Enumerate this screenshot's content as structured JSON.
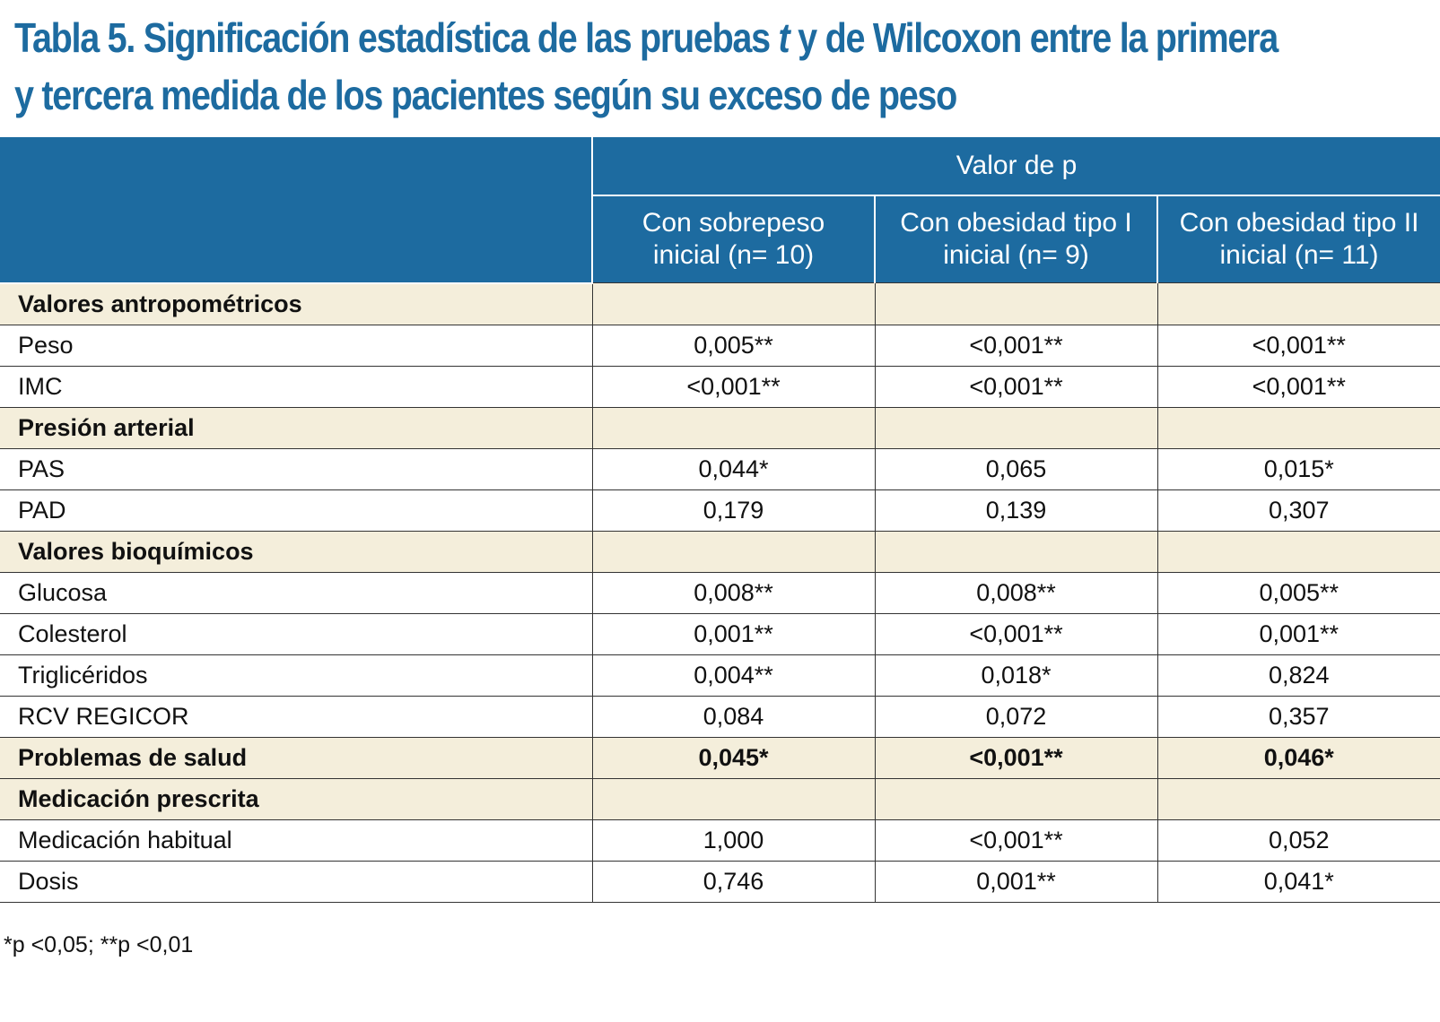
{
  "title": {
    "line1_a": "Tabla 5. Significación estadística de las pruebas ",
    "line1_italic": "t",
    "line1_b": " y de Wilcoxon entre la primera",
    "line2": "y tercera medida de los pacientes según su exceso de peso"
  },
  "table": {
    "group_header": "Valor de p",
    "columns": [
      {
        "line1": "Con sobrepeso",
        "line2": "inicial (n= 10)"
      },
      {
        "line1": "Con obesidad tipo I",
        "line2": "inicial (n= 9)"
      },
      {
        "line1": "Con obesidad tipo II",
        "line2": "inicial (n= 11)"
      }
    ],
    "rows": [
      {
        "label": "Valores antropométricos",
        "values": [
          "",
          "",
          ""
        ]
      },
      {
        "label": "Peso",
        "values": [
          "0,005**",
          "<0,001**",
          "<0,001**"
        ]
      },
      {
        "label": "IMC",
        "values": [
          "<0,001**",
          "<0,001**",
          "<0,001**"
        ]
      },
      {
        "label": "Presión arterial",
        "values": [
          "",
          "",
          ""
        ]
      },
      {
        "label": "PAS",
        "values": [
          "0,044*",
          "0,065",
          "0,015*"
        ]
      },
      {
        "label": "PAD",
        "values": [
          "0,179",
          "0,139",
          "0,307"
        ]
      },
      {
        "label": "Valores bioquímicos",
        "values": [
          "",
          "",
          ""
        ]
      },
      {
        "label": "Glucosa",
        "values": [
          "0,008**",
          "0,008**",
          "0,005**"
        ]
      },
      {
        "label": "Colesterol",
        "values": [
          "0,001**",
          "<0,001**",
          "0,001**"
        ]
      },
      {
        "label": "Triglicéridos",
        "values": [
          "0,004**",
          "0,018*",
          "0,824"
        ]
      },
      {
        "label": "RCV REGICOR",
        "values": [
          "0,084",
          "0,072",
          "0,357"
        ]
      },
      {
        "label": "Problemas de salud",
        "values": [
          "0,045*",
          "<0,001**",
          "0,046*"
        ]
      },
      {
        "label": "Medicación prescrita",
        "values": [
          "",
          "",
          ""
        ]
      },
      {
        "label": "Medicación habitual",
        "values": [
          "1,000",
          "<0,001**",
          "0,052"
        ]
      },
      {
        "label": "Dosis",
        "values": [
          "0,746",
          "0,001**",
          "0,041*"
        ]
      }
    ]
  },
  "footnote": "*p <0,05; **p <0,01"
}
